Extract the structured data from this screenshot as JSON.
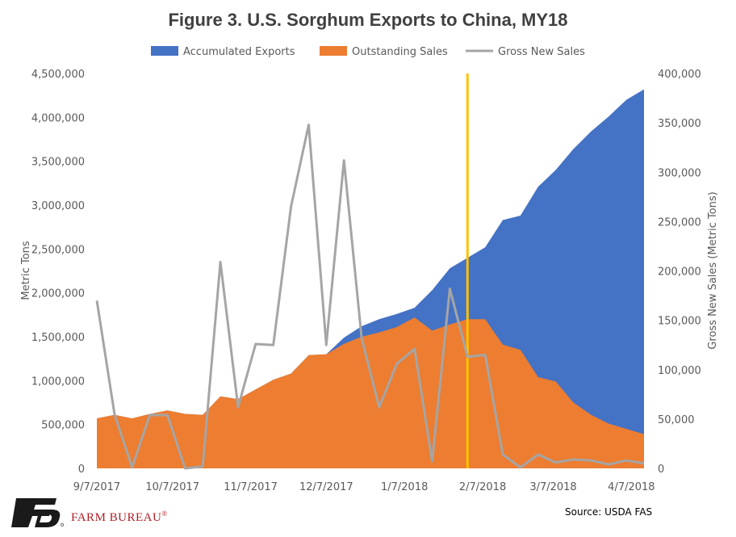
{
  "chart_data": {
    "type": "area",
    "title": "Figure 3. U.S. Sorghum Exports to China, MY18",
    "ylabel": "Metric Tons",
    "y2label": "Gross New Sales (Metric Tons)",
    "ylim": [
      0,
      4500000
    ],
    "y2lim": [
      0,
      400000
    ],
    "y_ticks": [
      "0",
      "500,000",
      "1,000,000",
      "1,500,000",
      "2,000,000",
      "2,500,000",
      "3,000,000",
      "3,500,000",
      "4,000,000",
      "4,500,000"
    ],
    "y2_ticks": [
      "0",
      "50,000",
      "100,000",
      "150,000",
      "200,000",
      "250,000",
      "300,000",
      "350,000",
      "400,000"
    ],
    "x_ticks": [
      "9/7/2017",
      "10/7/2017",
      "11/7/2017",
      "12/7/2017",
      "1/7/2018",
      "2/7/2018",
      "3/7/2018",
      "4/7/2018"
    ],
    "x_tick_days": [
      0,
      30,
      61,
      91,
      122,
      153,
      181,
      212
    ],
    "x": [
      "2017-09-07",
      "2017-09-14",
      "2017-09-21",
      "2017-09-28",
      "2017-10-05",
      "2017-10-12",
      "2017-10-19",
      "2017-10-26",
      "2017-11-02",
      "2017-11-09",
      "2017-11-16",
      "2017-11-23",
      "2017-11-30",
      "2017-12-07",
      "2017-12-14",
      "2017-12-21",
      "2017-12-28",
      "2018-01-04",
      "2018-01-11",
      "2018-01-18",
      "2018-01-25",
      "2018-02-01",
      "2018-02-08",
      "2018-02-15",
      "2018-02-22",
      "2018-03-01",
      "2018-03-08",
      "2018-03-15",
      "2018-03-22",
      "2018-03-29",
      "2018-04-05",
      "2018-04-12"
    ],
    "series": [
      {
        "name": "Accumulated Exports",
        "axis": "left",
        "color": "#4472c4",
        "values": [
          570000,
          610000,
          570000,
          620000,
          660000,
          620000,
          610000,
          820000,
          790000,
          900000,
          1010000,
          1080000,
          1290000,
          1300000,
          1490000,
          1620000,
          1700000,
          1760000,
          1830000,
          2030000,
          2280000,
          2400000,
          2520000,
          2830000,
          2880000,
          3210000,
          3400000,
          3640000,
          3840000,
          4010000,
          4200000,
          4320000
        ]
      },
      {
        "name": "Outstanding Sales",
        "axis": "left",
        "color": "#ed7d31",
        "values": [
          570000,
          610000,
          570000,
          620000,
          660000,
          620000,
          610000,
          820000,
          790000,
          900000,
          1010000,
          1080000,
          1290000,
          1300000,
          1420000,
          1500000,
          1550000,
          1610000,
          1720000,
          1570000,
          1640000,
          1700000,
          1700000,
          1410000,
          1350000,
          1040000,
          990000,
          750000,
          610000,
          510000,
          450000,
          390000
        ]
      },
      {
        "name": "Gross New Sales",
        "axis": "right",
        "color": "#a5a5a5",
        "values": [
          170000,
          55000,
          1000,
          54000,
          54000,
          0,
          2000,
          209000,
          62000,
          126000,
          125000,
          265000,
          348000,
          125000,
          312000,
          132000,
          62000,
          106000,
          121000,
          7000,
          182000,
          113000,
          115000,
          14000,
          1000,
          14000,
          6000,
          9000,
          8000,
          4000,
          8000,
          5000
        ]
      }
    ],
    "marker_line": {
      "date": "2018-02-01",
      "color": "#ffc000"
    },
    "legend": "top",
    "grid": false
  },
  "footer": {
    "source": "Source: USDA FAS",
    "brand_name": "FARM BUREAU",
    "brand_reg": "®"
  }
}
